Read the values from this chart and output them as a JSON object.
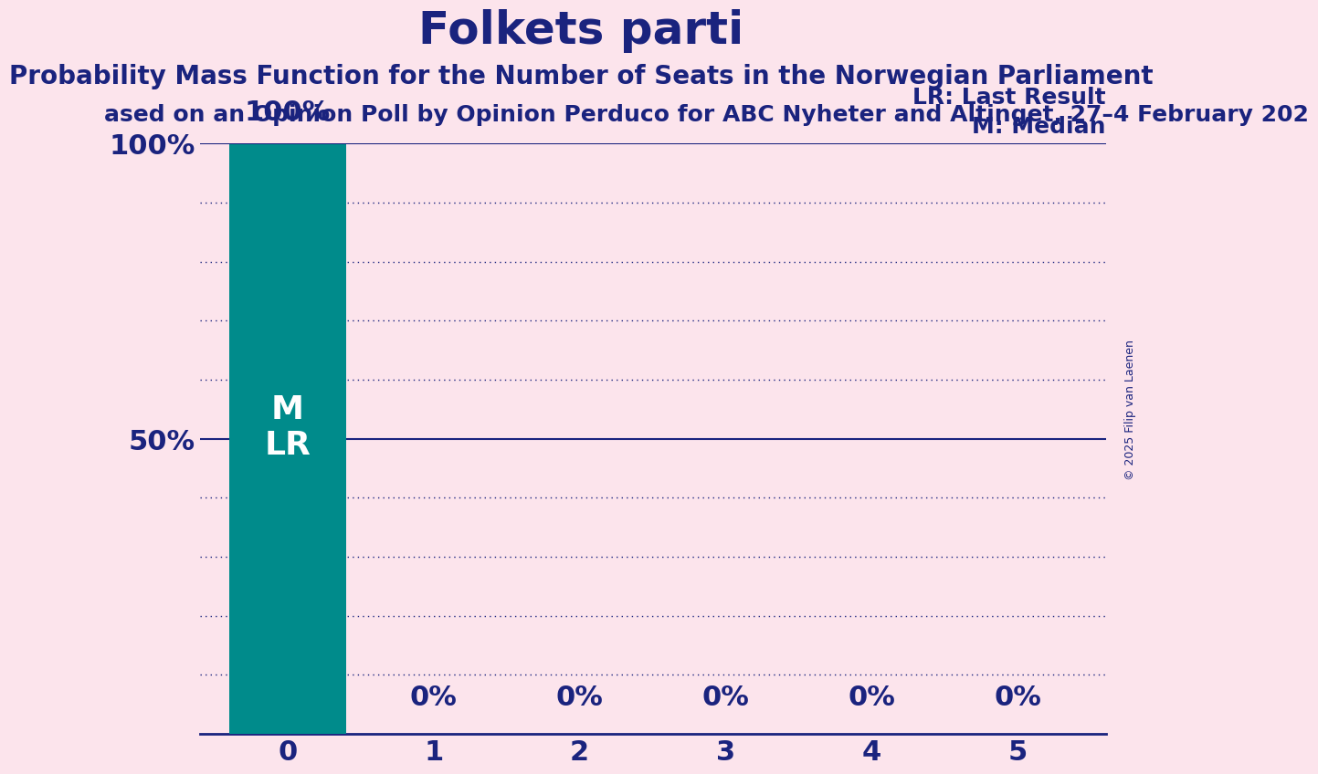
{
  "title": "Folkets parti",
  "subtitle1": "Probability Mass Function for the Number of Seats in the Norwegian Parliament",
  "subtitle2": "ased on an Opinion Poll by Opinion Perduco for ABC Nyheter and Altinget, 27–4 February 202",
  "copyright": "© 2025 Filip van Laenen",
  "background_color": "#fce4ec",
  "bar_color": "#008b8b",
  "title_color": "#1a237e",
  "axis_color": "#1a237e",
  "text_color": "#1a237e",
  "bar_label_color": "#ffffff",
  "categories": [
    0,
    1,
    2,
    3,
    4,
    5
  ],
  "values": [
    1.0,
    0.0,
    0.0,
    0.0,
    0.0,
    0.0
  ],
  "bar_labels": [
    "100%",
    "0%",
    "0%",
    "0%",
    "0%",
    "0%"
  ],
  "yticks": [
    0.0,
    0.1,
    0.2,
    0.3,
    0.4,
    0.5,
    0.6,
    0.7,
    0.8,
    0.9,
    1.0
  ],
  "ytick_labels": [
    "",
    "",
    "",
    "",
    "",
    "50%",
    "",
    "",
    "",
    "",
    "100%"
  ],
  "ylim": [
    0,
    1.0
  ],
  "median": 0,
  "last_result": 0,
  "legend_lr": "LR: Last Result",
  "legend_m": "M: Median",
  "title_fontsize": 36,
  "subtitle1_fontsize": 20,
  "subtitle2_fontsize": 18,
  "bar_label_fontsize": 22,
  "tick_fontsize": 22,
  "legend_fontsize": 18,
  "left_ytick_labels": [
    "",
    "",
    "",
    "",
    "",
    "50%",
    "",
    "",
    "",
    "",
    "100%"
  ]
}
